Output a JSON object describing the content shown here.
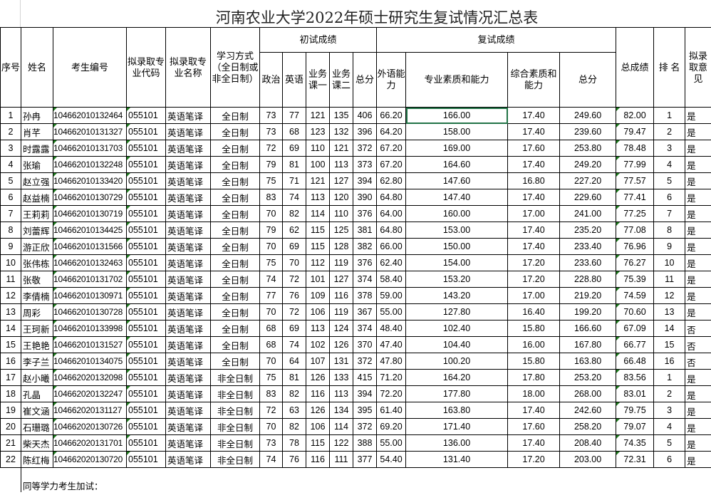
{
  "title": "河南农业大学2022年硕士研究生复试情况汇总表",
  "headers": {
    "seq": "序号",
    "name": "姓名",
    "exam_no": "考生编号",
    "major_code": "拟录取专业代码",
    "major_name": "拟录取专业名称",
    "study_mode": "学习方式（全日制或非全日制）",
    "initial_group": "初试成绩",
    "politics": "政治",
    "english": "英语",
    "course1": "业务课一",
    "course2": "业务课二",
    "initial_total": "总分",
    "retest_group": "复试成绩",
    "foreign_lang": "外语能力",
    "professional": "专业素质和能力",
    "comprehensive": "综合素质和能力",
    "retest_total": "总分",
    "overall": "总成绩",
    "rank": "排 名",
    "opinion": "拟录取意见"
  },
  "rows": [
    [
      "1",
      "孙冉",
      "104662010132464",
      "055101",
      "英语笔译",
      "全日制",
      "73",
      "77",
      "121",
      "135",
      "406",
      "66.20",
      "166.00",
      "17.40",
      "249.60",
      "82.00",
      "1",
      "是"
    ],
    [
      "2",
      "肖芊",
      "104662010131327",
      "055101",
      "英语笔译",
      "全日制",
      "73",
      "68",
      "123",
      "132",
      "396",
      "64.20",
      "158.00",
      "17.40",
      "239.60",
      "79.47",
      "2",
      "是"
    ],
    [
      "3",
      "时露露",
      "104662010131703",
      "055101",
      "英语笔译",
      "全日制",
      "72",
      "69",
      "110",
      "121",
      "372",
      "67.20",
      "169.00",
      "17.60",
      "253.80",
      "78.48",
      "3",
      "是"
    ],
    [
      "4",
      "张瑜",
      "104662010132248",
      "055101",
      "英语笔译",
      "全日制",
      "79",
      "81",
      "100",
      "113",
      "373",
      "67.20",
      "164.60",
      "17.40",
      "249.20",
      "77.99",
      "4",
      "是"
    ],
    [
      "5",
      "赵立强",
      "104662010133420",
      "055101",
      "英语笔译",
      "全日制",
      "75",
      "71",
      "121",
      "127",
      "394",
      "62.80",
      "147.60",
      "16.80",
      "227.20",
      "77.57",
      "5",
      "是"
    ],
    [
      "6",
      "赵益楠",
      "104662010130729",
      "055101",
      "英语笔译",
      "全日制",
      "83",
      "74",
      "113",
      "120",
      "390",
      "64.80",
      "147.40",
      "17.40",
      "229.60",
      "77.41",
      "6",
      "是"
    ],
    [
      "7",
      "王莉莉",
      "104662010130719",
      "055101",
      "英语笔译",
      "全日制",
      "70",
      "82",
      "114",
      "110",
      "376",
      "64.00",
      "160.00",
      "17.00",
      "241.00",
      "77.25",
      "7",
      "是"
    ],
    [
      "8",
      "刘蕾辉",
      "104662010134425",
      "055101",
      "英语笔译",
      "全日制",
      "79",
      "62",
      "115",
      "125",
      "381",
      "64.80",
      "153.00",
      "17.40",
      "235.20",
      "77.08",
      "8",
      "是"
    ],
    [
      "9",
      "游正欣",
      "104662010131566",
      "055101",
      "英语笔译",
      "全日制",
      "70",
      "69",
      "115",
      "128",
      "382",
      "66.00",
      "150.00",
      "17.40",
      "233.40",
      "76.96",
      "9",
      "是"
    ],
    [
      "10",
      "张伟栋",
      "104662010132463",
      "055101",
      "英语笔译",
      "全日制",
      "75",
      "70",
      "112",
      "119",
      "376",
      "62.40",
      "154.00",
      "17.20",
      "233.60",
      "76.27",
      "10",
      "是"
    ],
    [
      "11",
      "张敬",
      "104662010131702",
      "055101",
      "英语笔译",
      "全日制",
      "74",
      "72",
      "101",
      "127",
      "374",
      "58.40",
      "153.20",
      "17.20",
      "228.80",
      "75.39",
      "11",
      "是"
    ],
    [
      "12",
      "李倩楠",
      "104662010130971",
      "055101",
      "英语笔译",
      "全日制",
      "77",
      "76",
      "109",
      "116",
      "378",
      "59.00",
      "143.20",
      "17.00",
      "219.20",
      "74.59",
      "12",
      "是"
    ],
    [
      "13",
      "周彩",
      "104662010130728",
      "055101",
      "英语笔译",
      "全日制",
      "70",
      "72",
      "106",
      "119",
      "367",
      "55.00",
      "127.80",
      "16.40",
      "199.20",
      "70.60",
      "13",
      "是"
    ],
    [
      "14",
      "王珂新",
      "104662010133998",
      "055101",
      "英语笔译",
      "全日制",
      "68",
      "69",
      "113",
      "124",
      "374",
      "48.40",
      "102.40",
      "15.80",
      "166.60",
      "67.09",
      "14",
      "否"
    ],
    [
      "15",
      "王艳艳",
      "104662010131527",
      "055101",
      "英语笔译",
      "全日制",
      "68",
      "74",
      "102",
      "126",
      "370",
      "47.40",
      "104.40",
      "16.00",
      "167.80",
      "66.77",
      "15",
      "否"
    ],
    [
      "16",
      "李子兰",
      "104662010134075",
      "055101",
      "英语笔译",
      "全日制",
      "70",
      "64",
      "107",
      "131",
      "372",
      "47.80",
      "100.20",
      "15.80",
      "163.80",
      "66.48",
      "16",
      "否"
    ],
    [
      "17",
      "赵小曦",
      "104662020132098",
      "055101",
      "英语笔译",
      "非全日制",
      "75",
      "81",
      "126",
      "133",
      "415",
      "71.20",
      "164.20",
      "17.80",
      "253.20",
      "83.56",
      "1",
      "是"
    ],
    [
      "18",
      "孔晶",
      "104662020132247",
      "055101",
      "英语笔译",
      "非全日制",
      "83",
      "82",
      "116",
      "113",
      "394",
      "72.20",
      "177.80",
      "18.00",
      "268.00",
      "83.01",
      "2",
      "是"
    ],
    [
      "19",
      "崔文涵",
      "104662020131127",
      "055101",
      "英语笔译",
      "非全日制",
      "72",
      "63",
      "126",
      "134",
      "395",
      "61.40",
      "163.80",
      "17.40",
      "242.60",
      "79.75",
      "3",
      "是"
    ],
    [
      "20",
      "石珊璐",
      "104662020130726",
      "055101",
      "英语笔译",
      "非全日制",
      "70",
      "82",
      "106",
      "114",
      "372",
      "69.20",
      "171.40",
      "17.60",
      "258.20",
      "79.07",
      "4",
      "是"
    ],
    [
      "21",
      "柴天杰",
      "104662020131701",
      "055101",
      "英语笔译",
      "非全日制",
      "73",
      "78",
      "115",
      "122",
      "388",
      "55.00",
      "136.00",
      "17.40",
      "208.40",
      "74.35",
      "5",
      "是"
    ],
    [
      "22",
      "陈红梅",
      "104662020130720",
      "055101",
      "英语笔译",
      "非全日制",
      "74",
      "76",
      "116",
      "111",
      "377",
      "54.40",
      "131.40",
      "17.20",
      "203.00",
      "72.31",
      "6",
      "是"
    ]
  ],
  "footer": "同等学力考生加试：",
  "colors": {
    "selection": "#217346",
    "comment_marker": "#1e7b1e"
  }
}
